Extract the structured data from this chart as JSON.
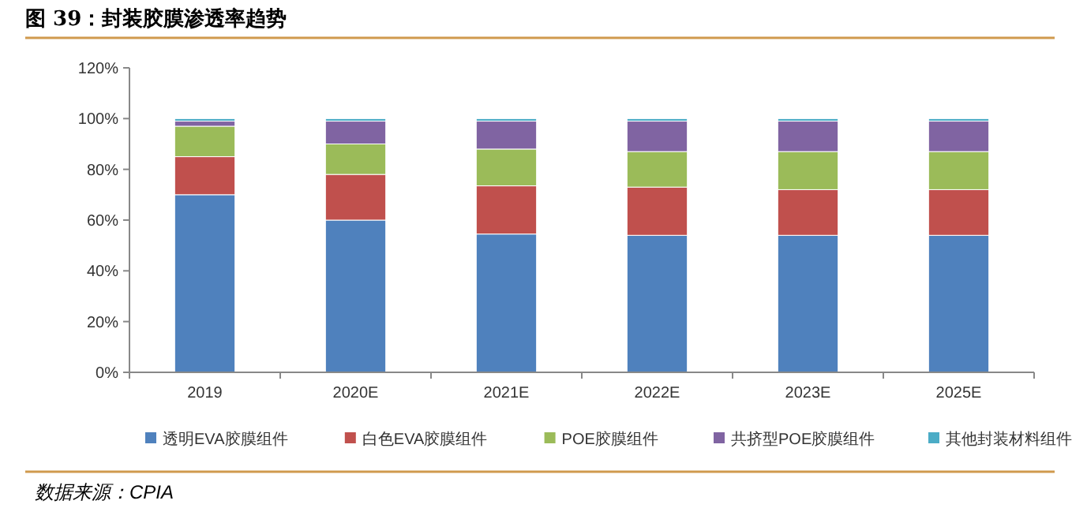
{
  "chart_data": {
    "type": "bar",
    "title": "图 39：封装胶膜渗透率趋势",
    "stacked": true,
    "categories": [
      "2019",
      "2020E",
      "2021E",
      "2022E",
      "2023E",
      "2025E"
    ],
    "series": [
      {
        "name": "透明EVA胶膜组件",
        "color": "#4f81bd",
        "values": [
          70,
          60,
          54.5,
          54,
          54,
          54
        ]
      },
      {
        "name": "白色EVA胶膜组件",
        "color": "#c0504d",
        "values": [
          15,
          18,
          19,
          19,
          18,
          18
        ]
      },
      {
        "name": "POE胶膜组件",
        "color": "#9bbb59",
        "values": [
          12,
          12,
          14.5,
          14,
          15,
          15
        ]
      },
      {
        "name": "共挤型POE胶膜组件",
        "color": "#8064a2",
        "values": [
          2,
          9,
          11,
          12,
          12,
          12
        ]
      },
      {
        "name": "其他封装材料组件",
        "color": "#4bacc6",
        "values": [
          1,
          1,
          1,
          1,
          1,
          1
        ]
      }
    ],
    "ylim": [
      0,
      120
    ],
    "yticks": [
      {
        "value": 0,
        "label": "0%"
      },
      {
        "value": 20,
        "label": "20%"
      },
      {
        "value": 40,
        "label": "40%"
      },
      {
        "value": 60,
        "label": "60%"
      },
      {
        "value": 80,
        "label": "80%"
      },
      {
        "value": 100,
        "label": "100%"
      },
      {
        "value": 120,
        "label": "120%"
      }
    ],
    "grid": false,
    "legend": "bottom",
    "annotations": [
      "数据来源：CPIA"
    ]
  }
}
